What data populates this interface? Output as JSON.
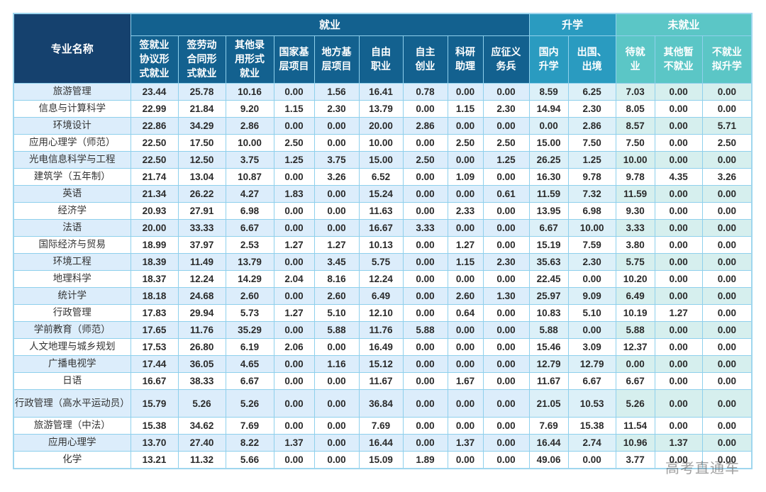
{
  "table": {
    "name_header": "专业名称",
    "groups": [
      {
        "label": "就业",
        "span": 9
      },
      {
        "label": "升学",
        "span": 2
      },
      {
        "label": "未就业",
        "span": 3
      }
    ],
    "columns": [
      "签就业协议形式就业",
      "签劳动合同形式就业",
      "其他录用形式就业",
      "国家基层项目",
      "地方基层项目",
      "自由职业",
      "自主创业",
      "科研助理",
      "应征义务兵",
      "国内升学",
      "出国、出境",
      "待就业",
      "其他暂不就业",
      "不就业拟升学"
    ],
    "rows": [
      {
        "name": "旅游管理",
        "values": [
          "23.44",
          "25.78",
          "10.16",
          "0.00",
          "1.56",
          "16.41",
          "0.78",
          "0.00",
          "0.00",
          "8.59",
          "6.25",
          "7.03",
          "0.00",
          "0.00"
        ]
      },
      {
        "name": "信息与计算科学",
        "values": [
          "22.99",
          "21.84",
          "9.20",
          "1.15",
          "2.30",
          "13.79",
          "0.00",
          "1.15",
          "2.30",
          "14.94",
          "2.30",
          "8.05",
          "0.00",
          "0.00"
        ]
      },
      {
        "name": "环境设计",
        "values": [
          "22.86",
          "34.29",
          "2.86",
          "0.00",
          "0.00",
          "20.00",
          "2.86",
          "0.00",
          "0.00",
          "0.00",
          "2.86",
          "8.57",
          "0.00",
          "5.71"
        ]
      },
      {
        "name": "应用心理学（师范）",
        "values": [
          "22.50",
          "17.50",
          "10.00",
          "2.50",
          "0.00",
          "10.00",
          "0.00",
          "2.50",
          "2.50",
          "15.00",
          "7.50",
          "7.50",
          "0.00",
          "2.50"
        ]
      },
      {
        "name": "光电信息科学与工程",
        "values": [
          "22.50",
          "12.50",
          "3.75",
          "1.25",
          "3.75",
          "15.00",
          "2.50",
          "0.00",
          "1.25",
          "26.25",
          "1.25",
          "10.00",
          "0.00",
          "0.00"
        ]
      },
      {
        "name": "建筑学（五年制）",
        "values": [
          "21.74",
          "13.04",
          "10.87",
          "0.00",
          "3.26",
          "6.52",
          "0.00",
          "1.09",
          "0.00",
          "16.30",
          "9.78",
          "9.78",
          "4.35",
          "3.26"
        ]
      },
      {
        "name": "英语",
        "values": [
          "21.34",
          "26.22",
          "4.27",
          "1.83",
          "0.00",
          "15.24",
          "0.00",
          "0.00",
          "0.61",
          "11.59",
          "7.32",
          "11.59",
          "0.00",
          "0.00"
        ]
      },
      {
        "name": "经济学",
        "values": [
          "20.93",
          "27.91",
          "6.98",
          "0.00",
          "0.00",
          "11.63",
          "0.00",
          "2.33",
          "0.00",
          "13.95",
          "6.98",
          "9.30",
          "0.00",
          "0.00"
        ]
      },
      {
        "name": "法语",
        "values": [
          "20.00",
          "33.33",
          "6.67",
          "0.00",
          "0.00",
          "16.67",
          "3.33",
          "0.00",
          "0.00",
          "6.67",
          "10.00",
          "3.33",
          "0.00",
          "0.00"
        ]
      },
      {
        "name": "国际经济与贸易",
        "values": [
          "18.99",
          "37.97",
          "2.53",
          "1.27",
          "1.27",
          "10.13",
          "0.00",
          "1.27",
          "0.00",
          "15.19",
          "7.59",
          "3.80",
          "0.00",
          "0.00"
        ]
      },
      {
        "name": "环境工程",
        "values": [
          "18.39",
          "11.49",
          "13.79",
          "0.00",
          "3.45",
          "5.75",
          "0.00",
          "1.15",
          "2.30",
          "35.63",
          "2.30",
          "5.75",
          "0.00",
          "0.00"
        ]
      },
      {
        "name": "地理科学",
        "values": [
          "18.37",
          "12.24",
          "14.29",
          "2.04",
          "8.16",
          "12.24",
          "0.00",
          "0.00",
          "0.00",
          "22.45",
          "0.00",
          "10.20",
          "0.00",
          "0.00"
        ]
      },
      {
        "name": "统计学",
        "values": [
          "18.18",
          "24.68",
          "2.60",
          "0.00",
          "2.60",
          "6.49",
          "0.00",
          "2.60",
          "1.30",
          "25.97",
          "9.09",
          "6.49",
          "0.00",
          "0.00"
        ]
      },
      {
        "name": "行政管理",
        "values": [
          "17.83",
          "29.94",
          "5.73",
          "1.27",
          "5.10",
          "12.10",
          "0.00",
          "0.64",
          "0.00",
          "10.83",
          "5.10",
          "10.19",
          "1.27",
          "0.00"
        ]
      },
      {
        "name": "学前教育（师范）",
        "values": [
          "17.65",
          "11.76",
          "35.29",
          "0.00",
          "5.88",
          "11.76",
          "5.88",
          "0.00",
          "0.00",
          "5.88",
          "0.00",
          "5.88",
          "0.00",
          "0.00"
        ]
      },
      {
        "name": "人文地理与城乡规划",
        "values": [
          "17.53",
          "26.80",
          "6.19",
          "2.06",
          "0.00",
          "16.49",
          "0.00",
          "0.00",
          "0.00",
          "15.46",
          "3.09",
          "12.37",
          "0.00",
          "0.00"
        ]
      },
      {
        "name": "广播电视学",
        "values": [
          "17.44",
          "36.05",
          "4.65",
          "0.00",
          "1.16",
          "15.12",
          "0.00",
          "0.00",
          "0.00",
          "12.79",
          "12.79",
          "0.00",
          "0.00",
          "0.00"
        ]
      },
      {
        "name": "日语",
        "values": [
          "16.67",
          "38.33",
          "6.67",
          "0.00",
          "0.00",
          "11.67",
          "0.00",
          "1.67",
          "0.00",
          "11.67",
          "6.67",
          "6.67",
          "0.00",
          "0.00"
        ]
      },
      {
        "name": "行政管理（高水平运动员）",
        "values": [
          "15.79",
          "5.26",
          "5.26",
          "0.00",
          "0.00",
          "36.84",
          "0.00",
          "0.00",
          "0.00",
          "21.05",
          "10.53",
          "5.26",
          "0.00",
          "0.00"
        ]
      },
      {
        "name": "旅游管理（中法）",
        "values": [
          "15.38",
          "34.62",
          "7.69",
          "0.00",
          "0.00",
          "7.69",
          "0.00",
          "0.00",
          "0.00",
          "7.69",
          "15.38",
          "11.54",
          "0.00",
          "0.00"
        ]
      },
      {
        "name": "应用心理学",
        "values": [
          "13.70",
          "27.40",
          "8.22",
          "1.37",
          "0.00",
          "16.44",
          "0.00",
          "1.37",
          "0.00",
          "16.44",
          "2.74",
          "10.96",
          "1.37",
          "0.00"
        ]
      },
      {
        "name": "化学",
        "values": [
          "13.21",
          "11.32",
          "5.66",
          "0.00",
          "0.00",
          "15.09",
          "1.89",
          "0.00",
          "0.00",
          "49.06",
          "0.00",
          "3.77",
          "0.00",
          "0.00"
        ]
      }
    ]
  },
  "watermark": "高考直通车",
  "colors": {
    "name_header_bg": "#15416e",
    "employment_header_bg": "#13618f",
    "further_study_header_bg": "#2a9bc0",
    "unemployed_header_bg": "#5bc6c6",
    "row_stripe_bg": "#dcedfb",
    "border": "#8fd0ec"
  }
}
